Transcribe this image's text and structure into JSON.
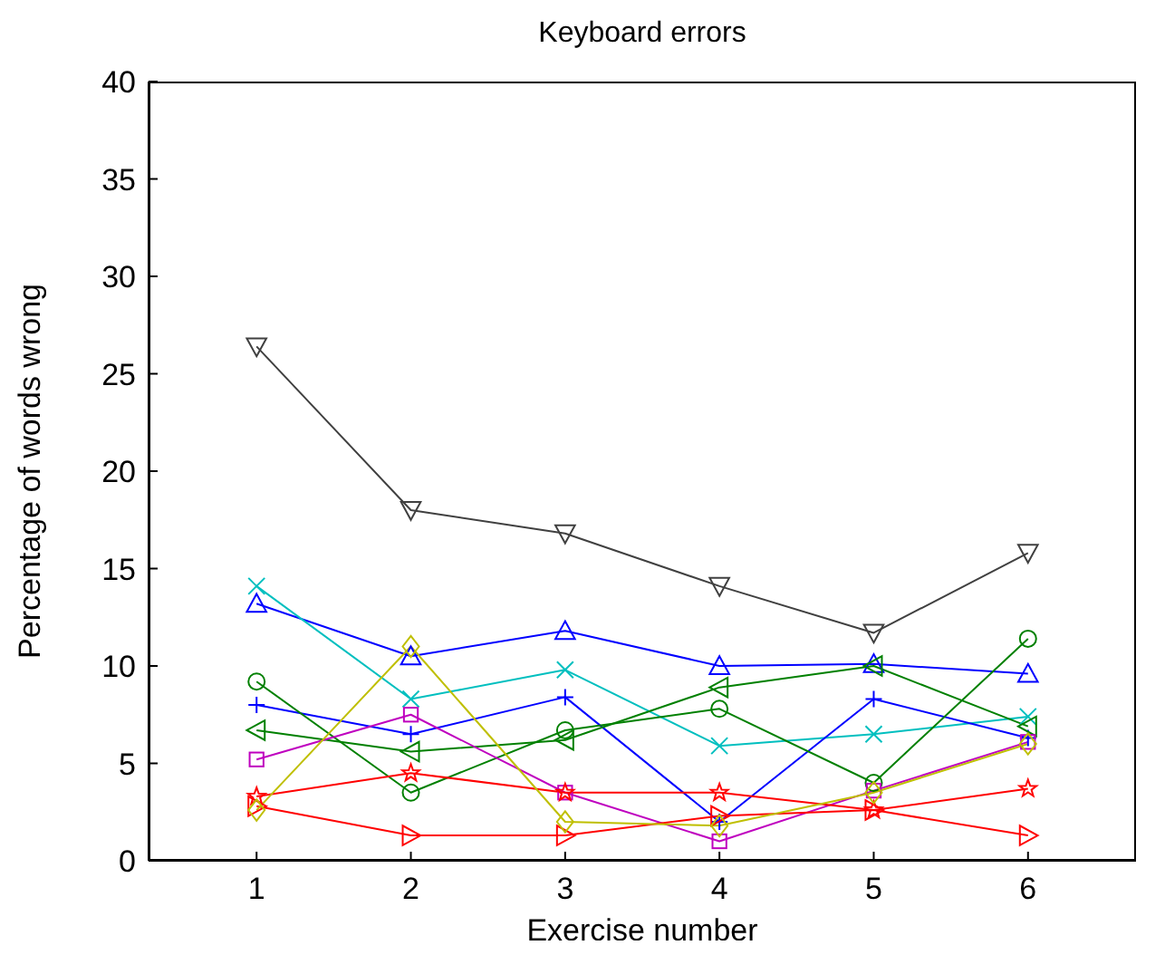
{
  "chart_data": {
    "type": "line",
    "title": "Keyboard errors",
    "xlabel": "Exercise number",
    "ylabel": "Percentage of words wrong",
    "x": [
      1,
      2,
      3,
      4,
      5,
      6
    ],
    "xlim": [
      0.3,
      6.7
    ],
    "xticks": [
      1,
      2,
      3,
      4,
      5,
      6
    ],
    "ylim": [
      0,
      40
    ],
    "yticks": [
      0,
      5,
      10,
      15,
      20,
      25,
      30,
      35,
      40
    ],
    "grid": false,
    "line_style": "solid",
    "series": [
      {
        "color": "#404040",
        "marker": "triangle-down",
        "values": [
          26.4,
          18,
          16.8,
          14.1,
          11.7,
          15.8
        ]
      },
      {
        "color": "#0000ff",
        "marker": "triangle",
        "values": [
          13.2,
          10.5,
          11.8,
          10.0,
          10.1,
          9.6
        ]
      },
      {
        "color": "#00bfbf",
        "marker": "cross",
        "values": [
          14.1,
          8.3,
          9.8,
          5.9,
          6.5,
          7.4
        ]
      },
      {
        "color": "#0000ff",
        "marker": "plus",
        "values": [
          8.0,
          6.5,
          8.4,
          2.0,
          8.3,
          6.3
        ]
      },
      {
        "color": "#008000",
        "marker": "circle",
        "values": [
          9.2,
          3.5,
          6.7,
          7.8,
          4.0,
          11.4
        ]
      },
      {
        "color": "#008000",
        "marker": "triangle-left",
        "values": [
          6.7,
          5.6,
          6.2,
          8.9,
          10.0,
          6.9
        ]
      },
      {
        "color": "#bf00bf",
        "marker": "square",
        "values": [
          5.2,
          7.5,
          3.5,
          1.0,
          3.6,
          6.1
        ]
      },
      {
        "color": "#ff0000",
        "marker": "star",
        "values": [
          3.3,
          4.5,
          3.5,
          3.5,
          2.6,
          3.7
        ]
      },
      {
        "color": "#ff0000",
        "marker": "triangle-right",
        "values": [
          2.8,
          1.3,
          1.3,
          2.3,
          2.6,
          1.3
        ]
      },
      {
        "color": "#bfbf00",
        "marker": "diamond",
        "values": [
          2.6,
          11.0,
          2.0,
          1.8,
          3.5,
          6.0
        ]
      }
    ]
  }
}
